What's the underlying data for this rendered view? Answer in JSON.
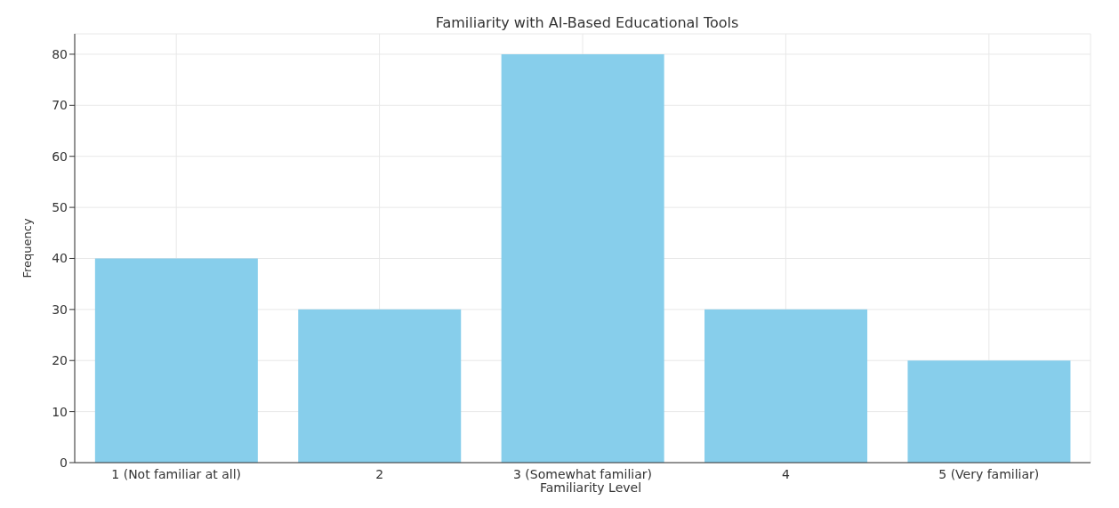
{
  "chart_data": {
    "type": "bar",
    "title": "Familiarity with AI-Based Educational Tools",
    "xlabel": "Familiarity Level",
    "ylabel": "Frequency",
    "categories": [
      "1 (Not familiar at all)",
      "2",
      "3 (Somewhat familiar)",
      "4",
      "5 (Very familiar)"
    ],
    "values": [
      40,
      30,
      80,
      30,
      20
    ],
    "color": "#87ceeb",
    "ylim": [
      0,
      84
    ],
    "yticks": [
      0,
      10,
      20,
      30,
      40,
      50,
      60,
      70,
      80
    ],
    "grid": true
  }
}
